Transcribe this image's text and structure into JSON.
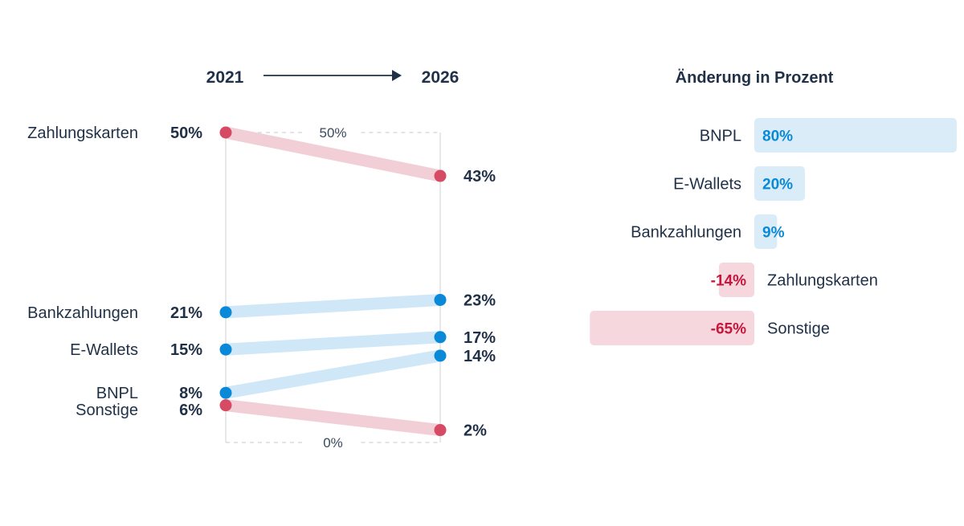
{
  "chart_data": [
    {
      "type": "line",
      "subtype": "slope",
      "x": [
        "2021",
        "2026"
      ],
      "reference_lines": [
        {
          "value": 50,
          "label": "50%"
        },
        {
          "value": 0,
          "label": "0%"
        }
      ],
      "ylim": [
        0,
        50
      ],
      "series": [
        {
          "name": "Zahlungskarten",
          "values": [
            50,
            43
          ],
          "labels": [
            "50%",
            "43%"
          ],
          "trend": "down"
        },
        {
          "name": "Bankzahlungen",
          "values": [
            21,
            23
          ],
          "labels": [
            "21%",
            "23%"
          ],
          "trend": "up"
        },
        {
          "name": "E-Wallets",
          "values": [
            15,
            17
          ],
          "labels": [
            "15%",
            "17%"
          ],
          "trend": "up"
        },
        {
          "name": "BNPL",
          "values": [
            8,
            14
          ],
          "labels": [
            "8%",
            "14%"
          ],
          "trend": "up"
        },
        {
          "name": "Sonstige",
          "values": [
            6,
            2
          ],
          "labels": [
            "6%",
            "2%"
          ],
          "trend": "down"
        }
      ],
      "colors": {
        "up_dot": "#0a89d8",
        "up_line": "#cfe7f7",
        "down_dot": "#d64a63",
        "down_line": "#f2cfd6"
      }
    },
    {
      "type": "bar",
      "orientation": "horizontal",
      "title": "Änderung in Prozent",
      "categories": [
        "BNPL",
        "E-Wallets",
        "Bankzahlungen",
        "Zahlungskarten",
        "Sonstige"
      ],
      "values": [
        80,
        20,
        9,
        -14,
        -65
      ],
      "labels": [
        "80%",
        "20%",
        "9%",
        "-14%",
        "-65%"
      ],
      "colors": {
        "pos_bar": "#d9ecf8",
        "pos_text": "#0a89d8",
        "neg_bar": "#f5d7dd",
        "neg_text": "#c8153c"
      }
    }
  ]
}
